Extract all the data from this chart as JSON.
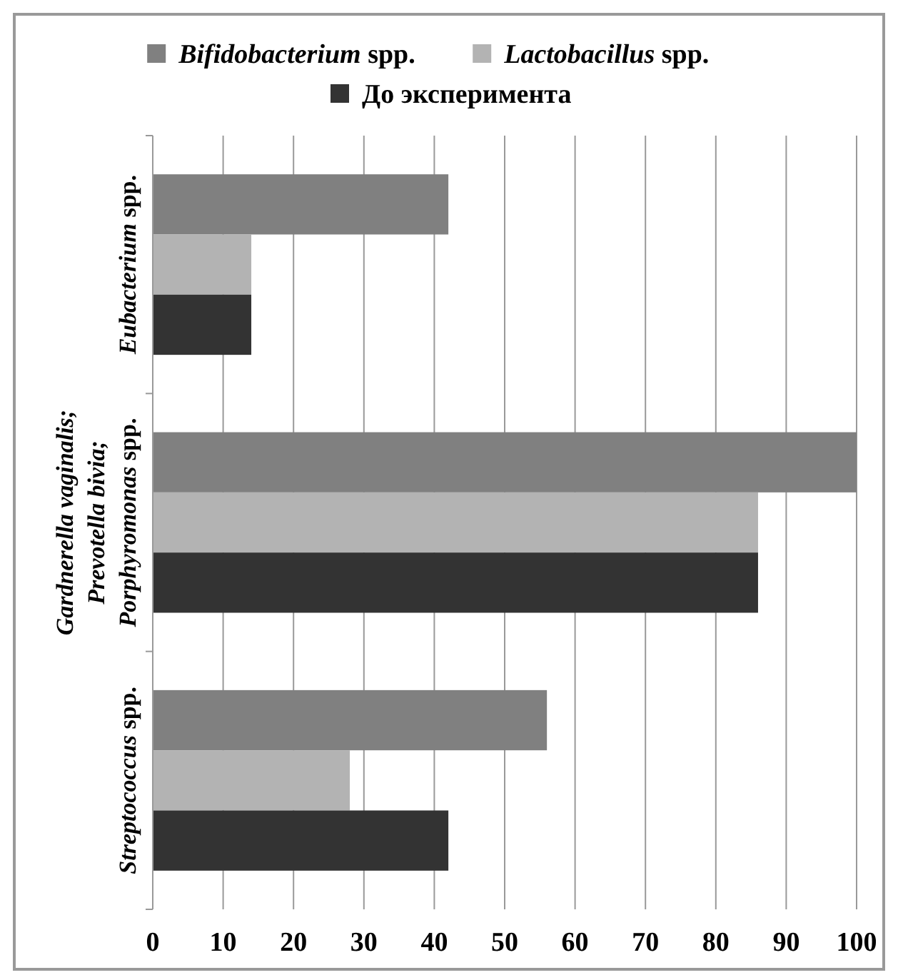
{
  "chart_data": {
    "type": "bar",
    "orientation": "horizontal",
    "categories": [
      "Eubacterium spp.",
      "Gardnerella vaginalis; Prevotella bivia; Porphyromonas spp.",
      "Streptococcus spp."
    ],
    "series": [
      {
        "name": "Bifidobacterium spp.",
        "color": "#808080",
        "values": [
          42,
          100,
          56
        ]
      },
      {
        "name": "Lactobacillus spp.",
        "color": "#b3b3b3",
        "values": [
          14,
          86,
          28
        ]
      },
      {
        "name": "До эксперимента",
        "color": "#333333",
        "values": [
          14,
          86,
          42
        ]
      }
    ],
    "xlim": [
      0,
      100
    ],
    "xticks": [
      0,
      10,
      20,
      30,
      40,
      50,
      60,
      70,
      80,
      90,
      100
    ],
    "grid": "x",
    "legend": "top"
  }
}
